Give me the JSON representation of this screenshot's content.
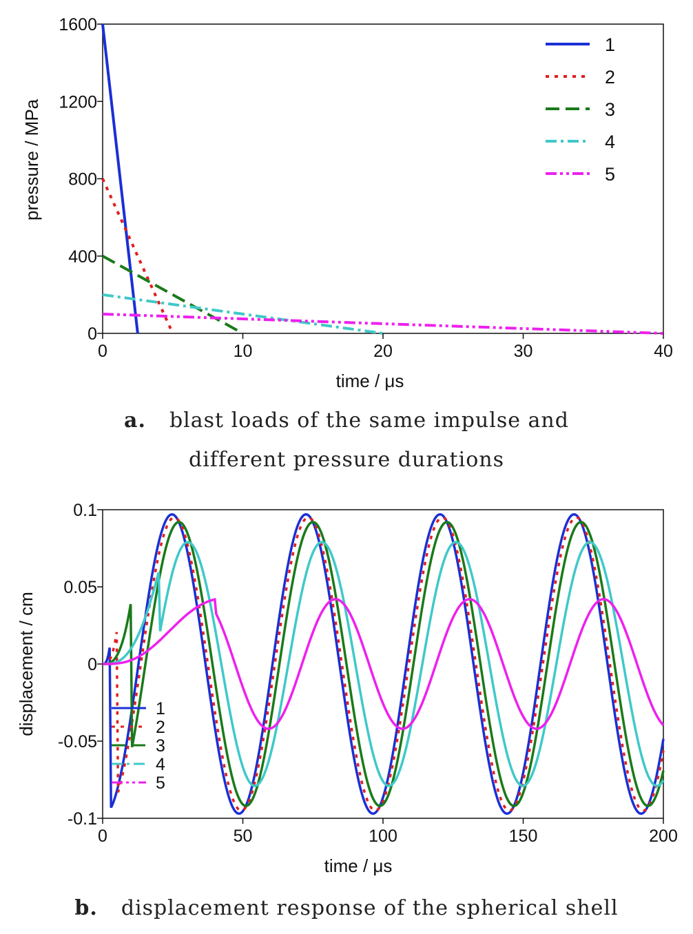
{
  "captions": {
    "a_tag": "a.",
    "a_line1": "blast loads of the same impulse and",
    "a_line2": "different pressure durations",
    "b_tag": "b.",
    "b_line1": "displacement response of the spherical shell"
  },
  "chart_data": [
    {
      "id": "a",
      "type": "line",
      "xlabel": "time / μs",
      "ylabel": "pressure / MPa",
      "xlim": [
        0,
        40
      ],
      "ylim": [
        0,
        1600
      ],
      "xticks": [
        "0",
        "10",
        "20",
        "30",
        "40"
      ],
      "yticks": [
        "0",
        "400",
        "800",
        "1200",
        "1600"
      ],
      "legend_position": "top-right",
      "series": [
        {
          "name": "1",
          "color": "#1a2fd6",
          "dash": "solid",
          "x": [
            0,
            2.5
          ],
          "y": [
            1600,
            0
          ]
        },
        {
          "name": "2",
          "color": "#e02020",
          "dash": "dotted",
          "x": [
            0,
            5
          ],
          "y": [
            800,
            0
          ]
        },
        {
          "name": "3",
          "color": "#1a7a1a",
          "dash": "dashed",
          "x": [
            0,
            10
          ],
          "y": [
            400,
            0
          ]
        },
        {
          "name": "4",
          "color": "#40c8c8",
          "dash": "dashdot",
          "x": [
            0,
            20
          ],
          "y": [
            200,
            0
          ]
        },
        {
          "name": "5",
          "color": "#ee20ee",
          "dash": "dashdotdot",
          "x": [
            0,
            40
          ],
          "y": [
            100,
            0
          ]
        }
      ]
    },
    {
      "id": "b",
      "type": "line",
      "xlabel": "time / μs",
      "ylabel": "displacement / cm",
      "xlim": [
        0,
        200
      ],
      "ylim": [
        -0.1,
        0.1
      ],
      "xticks": [
        "0",
        "50",
        "100",
        "150",
        "200"
      ],
      "yticks": [
        "-0.1",
        "-0.05",
        "0",
        "0.05",
        "0.1"
      ],
      "legend_position": "bottom-left",
      "series": [
        {
          "name": "1",
          "color": "#1a2fd6",
          "dash": "solid",
          "amplitude": 0.097,
          "period": 47.8,
          "pulse_duration": 2.5
        },
        {
          "name": "2",
          "color": "#e02020",
          "dash": "dotted",
          "amplitude": 0.095,
          "period": 47.8,
          "pulse_duration": 5
        },
        {
          "name": "3",
          "color": "#1a7a1a",
          "dash": "solid",
          "amplitude": 0.092,
          "period": 47.8,
          "pulse_duration": 10
        },
        {
          "name": "4",
          "color": "#40c8c8",
          "dash": "solid",
          "amplitude": 0.079,
          "period": 47.8,
          "pulse_duration": 20
        },
        {
          "name": "5",
          "color": "#ee20ee",
          "dash": "solid",
          "amplitude": 0.042,
          "period": 47.8,
          "pulse_duration": 40
        }
      ]
    }
  ]
}
